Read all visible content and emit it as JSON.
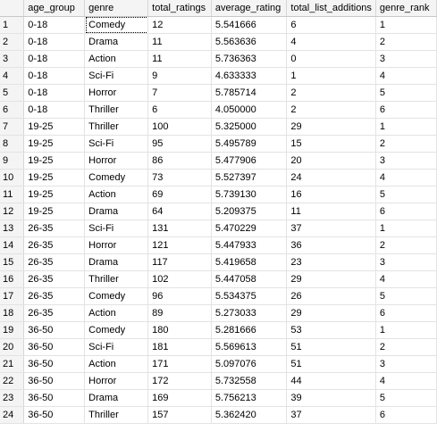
{
  "results_grid": {
    "columns": [
      "",
      "age_group",
      "genre",
      "total_ratings",
      "average_rating",
      "total_list_additions",
      "genre_rank"
    ],
    "rows": [
      [
        "1",
        "0-18",
        "Comedy",
        "12",
        "5.541666",
        "6",
        "1"
      ],
      [
        "2",
        "0-18",
        "Drama",
        "11",
        "5.563636",
        "4",
        "2"
      ],
      [
        "3",
        "0-18",
        "Action",
        "11",
        "5.736363",
        "0",
        "3"
      ],
      [
        "4",
        "0-18",
        "Sci-Fi",
        "9",
        "4.633333",
        "1",
        "4"
      ],
      [
        "5",
        "0-18",
        "Horror",
        "7",
        "5.785714",
        "2",
        "5"
      ],
      [
        "6",
        "0-18",
        "Thriller",
        "6",
        "4.050000",
        "2",
        "6"
      ],
      [
        "7",
        "19-25",
        "Thriller",
        "100",
        "5.325000",
        "29",
        "1"
      ],
      [
        "8",
        "19-25",
        "Sci-Fi",
        "95",
        "5.495789",
        "15",
        "2"
      ],
      [
        "9",
        "19-25",
        "Horror",
        "86",
        "5.477906",
        "20",
        "3"
      ],
      [
        "10",
        "19-25",
        "Comedy",
        "73",
        "5.527397",
        "24",
        "4"
      ],
      [
        "11",
        "19-25",
        "Action",
        "69",
        "5.739130",
        "16",
        "5"
      ],
      [
        "12",
        "19-25",
        "Drama",
        "64",
        "5.209375",
        "11",
        "6"
      ],
      [
        "13",
        "26-35",
        "Sci-Fi",
        "131",
        "5.470229",
        "37",
        "1"
      ],
      [
        "14",
        "26-35",
        "Horror",
        "121",
        "5.447933",
        "36",
        "2"
      ],
      [
        "15",
        "26-35",
        "Drama",
        "117",
        "5.419658",
        "23",
        "3"
      ],
      [
        "16",
        "26-35",
        "Thriller",
        "102",
        "5.447058",
        "29",
        "4"
      ],
      [
        "17",
        "26-35",
        "Comedy",
        "96",
        "5.534375",
        "26",
        "5"
      ],
      [
        "18",
        "26-35",
        "Action",
        "89",
        "5.273033",
        "29",
        "6"
      ],
      [
        "19",
        "36-50",
        "Comedy",
        "180",
        "5.281666",
        "53",
        "1"
      ],
      [
        "20",
        "36-50",
        "Sci-Fi",
        "181",
        "5.569613",
        "51",
        "2"
      ],
      [
        "21",
        "36-50",
        "Action",
        "171",
        "5.097076",
        "51",
        "3"
      ],
      [
        "22",
        "36-50",
        "Horror",
        "172",
        "5.732558",
        "44",
        "4"
      ],
      [
        "23",
        "36-50",
        "Drama",
        "169",
        "5.756213",
        "39",
        "5"
      ],
      [
        "24",
        "36-50",
        "Thriller",
        "157",
        "5.362420",
        "37",
        "6"
      ]
    ],
    "selected": {
      "row": 0,
      "col": 2
    }
  }
}
